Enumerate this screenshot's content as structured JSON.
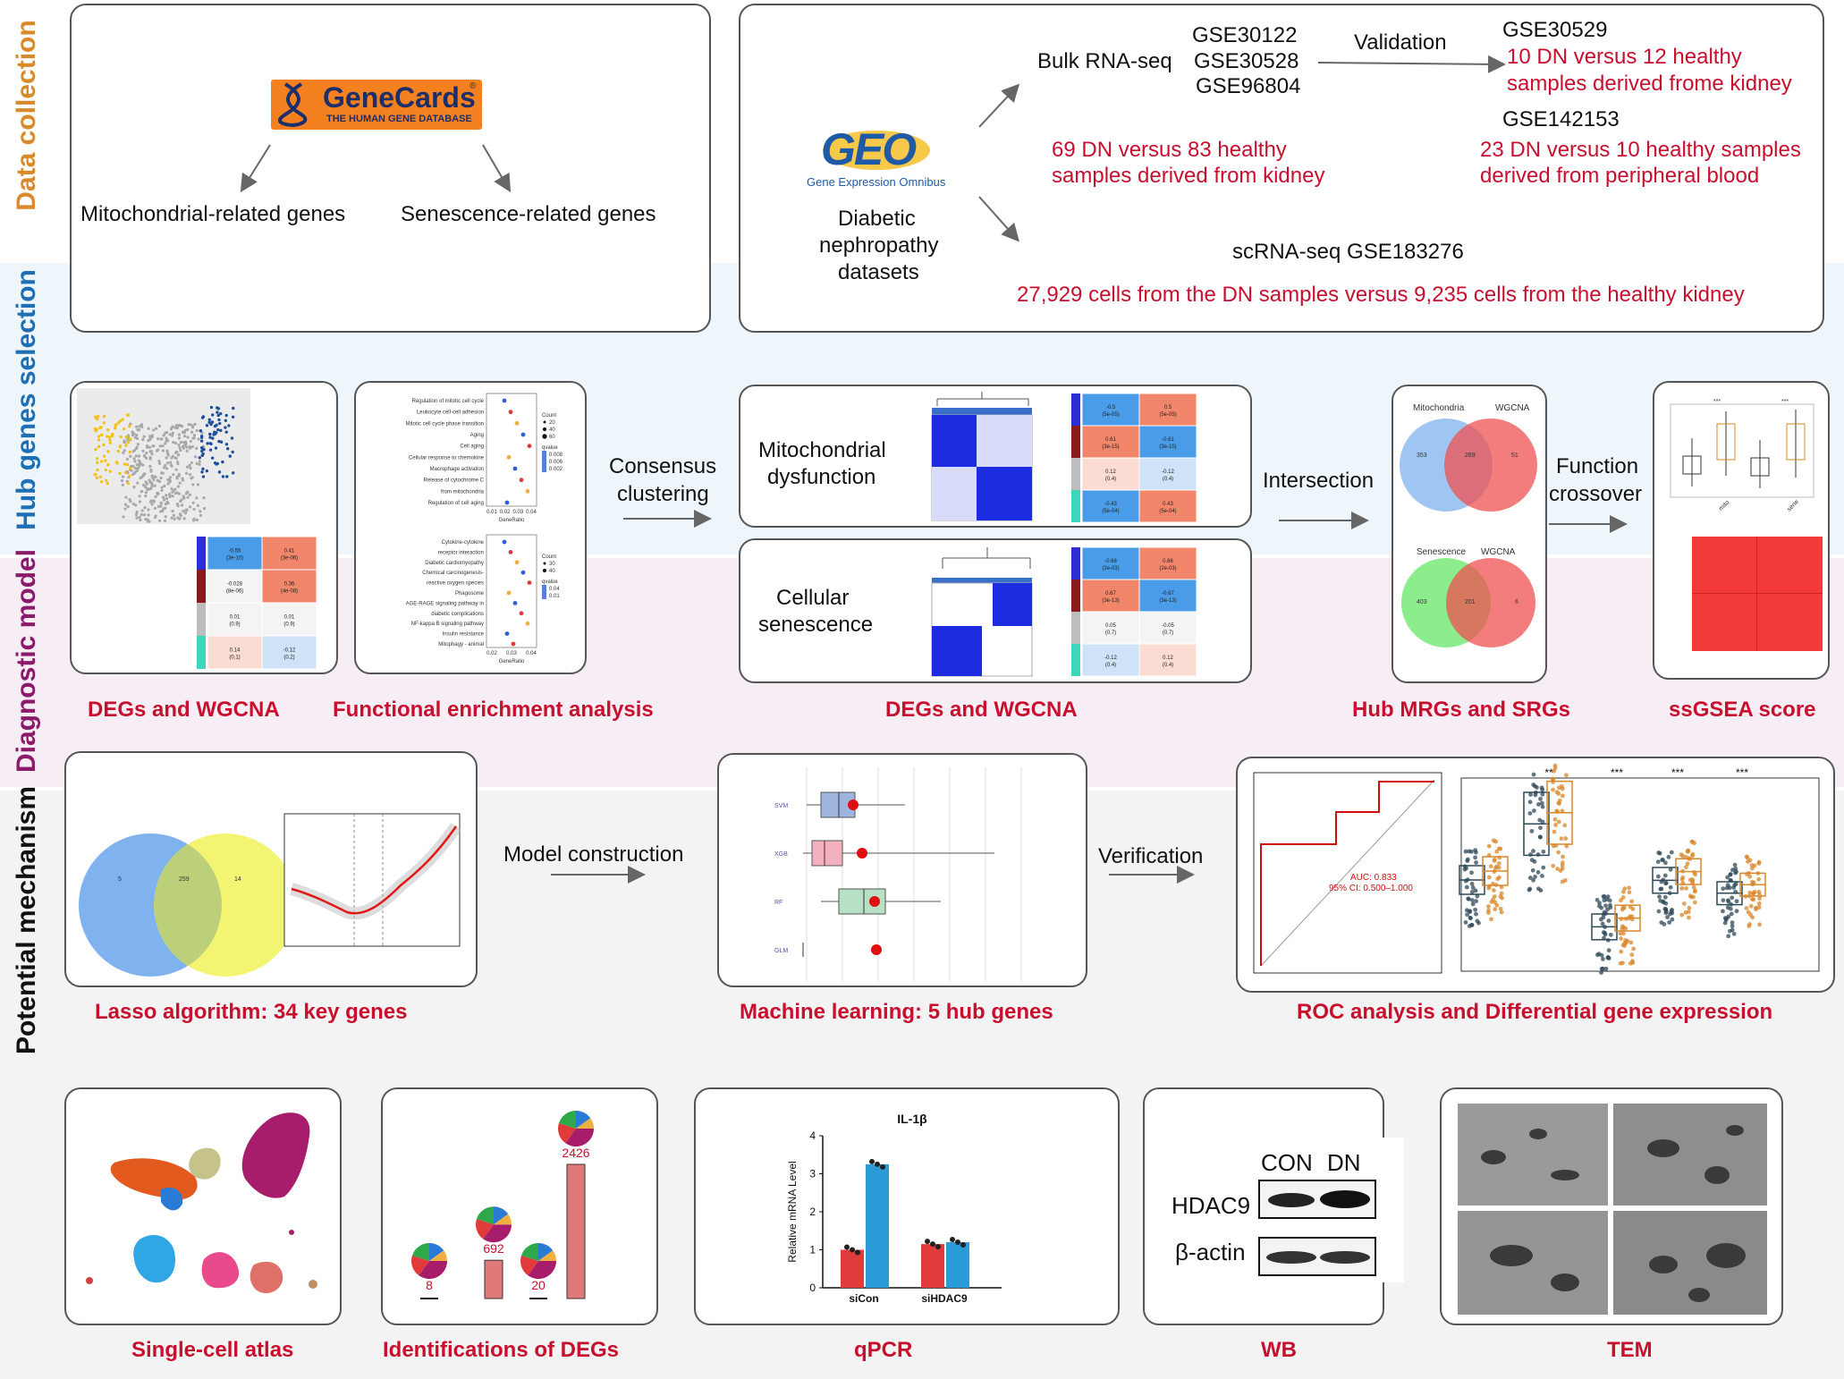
{
  "sections": {
    "data_collection": {
      "label": "Data collection",
      "color": "#d98a2b",
      "genecards": {
        "logo_main": "GeneCards",
        "logo_sub": "THE HUMAN GENE DATABASE",
        "reg": "®"
      },
      "left_outputs": [
        "Mitochondrial-related genes",
        "Senescence-related genes"
      ],
      "geo": {
        "logo": "GEO",
        "logo_sub": "Gene Expression Omnibus",
        "caption": [
          "Diabetic",
          "nephropathy",
          "datasets"
        ]
      },
      "bulk": {
        "label": "Bulk RNA-seq",
        "datasets": [
          "GSE30122",
          "GSE30528",
          "GSE96804"
        ],
        "samples": [
          "69 DN versus 83 healthy",
          "samples derived from kidney"
        ]
      },
      "validation": {
        "label": "Validation",
        "set1": {
          "id": "GSE30529",
          "desc": [
            "10 DN versus 12 healthy",
            "samples derived frome kidney"
          ]
        },
        "set2": {
          "id": "GSE142153",
          "desc": [
            "23 DN versus 10 healthy samples",
            "derived from peripheral blood"
          ]
        }
      },
      "scrna": {
        "label": "scRNA-seq GSE183276",
        "desc": "27,929 cells from the DN samples versus 9,235 cells from the healthy kidney"
      }
    },
    "hub_genes": {
      "label": "Hub genes selection",
      "color": "#1f6fb5",
      "captions": [
        "DEGs and WGCNA",
        "Functional enrichment analysis",
        "DEGs and WGCNA",
        "Hub MRGs and SRGs",
        "ssGSEA score"
      ],
      "consensus": [
        "Consensus",
        "clustering"
      ],
      "cluster_labels": [
        [
          "Mitochondrial",
          "dysfunction"
        ],
        [
          "Cellular",
          "senescence"
        ]
      ],
      "intersection": "Intersection",
      "function_crossover": [
        "Function",
        "crossover"
      ],
      "enrich1_terms": [
        "Regulation of mitotic cell cycle",
        "Leukocyte cell-cell adhesion",
        "Mitotic cell cycle phase transition",
        "Aging",
        "Cell aging",
        "Cellular response to chemokine",
        "Macrophage activation",
        "Release of cytochrome C",
        "from mitochondria",
        "Regulation of cell aging"
      ],
      "enrich1_legend": {
        "count_title": "Count",
        "counts": [
          "20",
          "40",
          "60"
        ],
        "q_title": "qvalue",
        "qs": [
          "0.008",
          "0.006",
          "0.002"
        ]
      },
      "enrich1_ticks": [
        "0.01",
        "0.02",
        "0.03",
        "0.04"
      ],
      "enrich2_terms": [
        "Cytokine-cytokine",
        "receptor interaction",
        "Diabetic cardiomyopathy",
        "Chemical carcinogenesis-",
        "reactive oxygen species",
        "Phagosome",
        "AGE-RAGE signaling pathway in",
        "diabetic complications",
        "NF-kappa B signaling pathway",
        "Insulin resistance",
        "Mitophagy - animal"
      ],
      "enrich2_legend": {
        "count_title": "Count",
        "counts": [
          "30",
          "40"
        ],
        "q_title": "qvalue",
        "qs": [
          "0.04",
          "0.01"
        ]
      },
      "enrich2_ticks": [
        "0.02",
        "0.03",
        "0.04"
      ],
      "gene_ratio": "GeneRatio",
      "venn1": {
        "a": "Mitochondria",
        "b": "WGCNA",
        "a_only": "353",
        "both": "269",
        "b_only": "51"
      },
      "venn2": {
        "a": "Senescence",
        "b": "WGCNA",
        "a_only": "403",
        "both": "201",
        "b_only": "6"
      },
      "heat_left": [
        [
          "-0.55",
          "(3e-10)"
        ],
        [
          "0.41",
          "(3e-06)"
        ],
        [
          "-0.028",
          "(8e-06)"
        ],
        [
          "0.36",
          "(4e-08)"
        ],
        [
          "0.01",
          "(0.9)"
        ],
        [
          "0.01",
          "(0.9)"
        ],
        [
          "0.14",
          "(0.1)"
        ],
        [
          "-0.12",
          "(0.2)"
        ]
      ],
      "heat_mito": [
        [
          "-0.5",
          "(5e-05)"
        ],
        [
          "0.5",
          "(5e-05)"
        ],
        [
          "0.61",
          "(3e-15)"
        ],
        [
          "-0.61",
          "(3e-15)"
        ],
        [
          "0.12",
          "(0.4)"
        ],
        [
          "-0.12",
          "(0.4)"
        ],
        [
          "-0.43",
          "(5e-04)"
        ],
        [
          "0.43",
          "(5e-04)"
        ]
      ],
      "heat_sen": [
        [
          "-0.66",
          "(2e-03)"
        ],
        [
          "0.66",
          "(2e-03)"
        ],
        [
          "0.67",
          "(3e-13)"
        ],
        [
          "-0.67",
          "(3e-13)"
        ],
        [
          "0.05",
          "(0.7)"
        ],
        [
          "-0.05",
          "(0.7)"
        ],
        [
          "-0.12",
          "(0.4)"
        ],
        [
          "0.12",
          "(0.4)"
        ]
      ],
      "ssgsea_stars": [
        "***",
        "***"
      ],
      "ssgsea_xticks": [
        "mito",
        "sene"
      ]
    },
    "diagnostic": {
      "label": "Diagnostic model",
      "color": "#8b1a6b",
      "lasso_venn": {
        "a_only": "5",
        "both": "259",
        "b_only": "14"
      },
      "model_construction": "Model construction",
      "verification": "Verification",
      "ml_models": [
        "SVM",
        "XGB",
        "RF",
        "GLM"
      ],
      "roc": {
        "auc": "AUC: 0.833",
        "ci": "95% CI: 0.500–1.000"
      },
      "stars": [
        "**",
        "***",
        "***",
        "***"
      ],
      "captions": [
        "Lasso algorithm: 34 key genes",
        "Machine learning: 5 hub genes",
        "ROC analysis and  Differential gene expression"
      ]
    },
    "mechanism": {
      "label": "Potential mechanism",
      "color": "#111111",
      "captions": [
        "Single-cell atlas",
        "Identifications of DEGs",
        "qPCR",
        "WB",
        "TEM"
      ],
      "degs": [
        "8",
        "692",
        "20",
        "2426"
      ],
      "qpcr": {
        "title": "IL-1β",
        "ylabel": "Relative mRNA Level",
        "yticks": [
          "0",
          "1",
          "2",
          "3",
          "4"
        ],
        "groups": [
          "siCon",
          "siHDAC9"
        ]
      },
      "wb": {
        "cols": [
          "CON",
          "DN"
        ],
        "rows": [
          "HDAC9",
          "β-actin"
        ]
      }
    }
  },
  "chart_data": {
    "type": "bar",
    "title": "IL-1β",
    "ylabel": "Relative mRNA Level",
    "categories": [
      "siCon",
      "siHDAC9"
    ],
    "series": [
      {
        "values": [
          1.0,
          1.15
        ]
      },
      {
        "values": [
          3.25,
          1.2
        ]
      }
    ],
    "ylim": [
      0,
      4
    ],
    "colors": [
      "#e03c3c",
      "#2b9bd8"
    ]
  }
}
